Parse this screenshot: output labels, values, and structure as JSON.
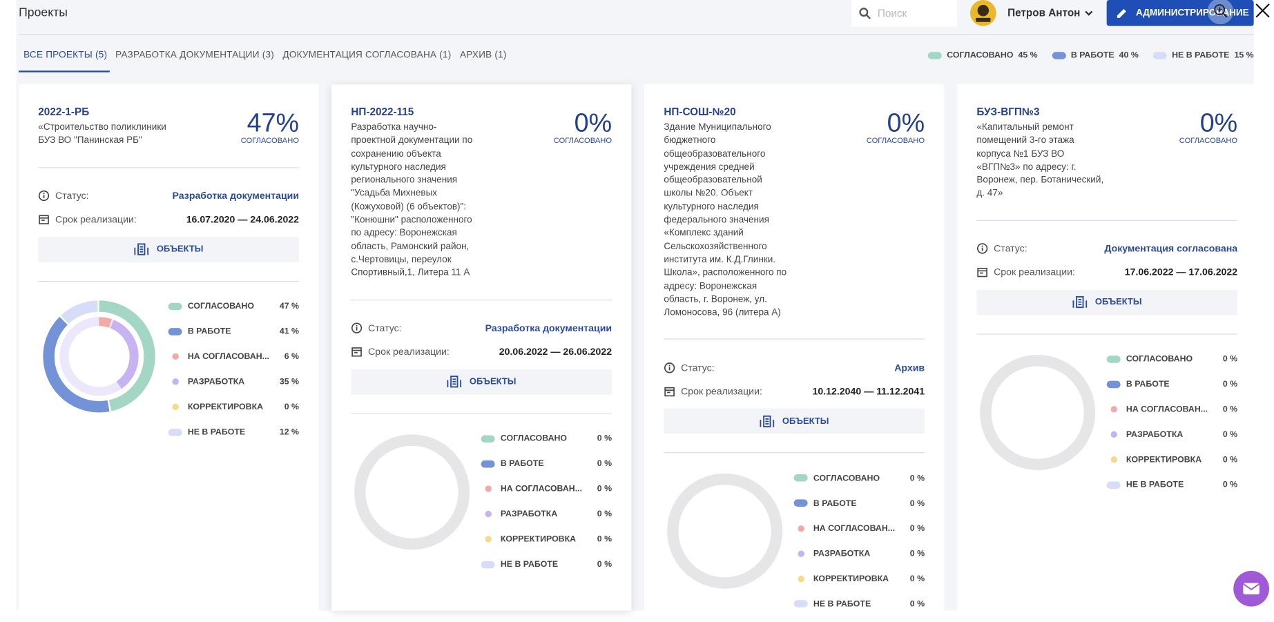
{
  "header": {
    "title": "Проекты",
    "search_placeholder": "Поиск",
    "user": "Петров Антон",
    "admin_button": "АДМИНИСТРИРОВАНИЕ"
  },
  "tabs": [
    "ВСЕ ПРОЕКТЫ (5)",
    "РАЗРАБОТКА ДОКУМЕНТАЦИИ (3)",
    "ДОКУМЕНТАЦИЯ СОГЛАСОВАНА (1)",
    "АРХИВ (1)"
  ],
  "summary": [
    {
      "name": "СОГЛАСОВАНО",
      "value": "45 %"
    },
    {
      "name": "В РАБОТЕ",
      "value": "40 %"
    },
    {
      "name": "НЕ В РАБОТЕ",
      "value": "15 %"
    }
  ],
  "status_names": [
    "СОГЛАСОВАНО",
    "В РАБОТЕ",
    "НА СОГЛАСОВАН...",
    "РАЗРАБОТКА",
    "КОРРЕКТИРОВКА",
    "НЕ В РАБОТЕ"
  ],
  "status_colors": [
    "#a3d6c4",
    "#7392d8",
    "#f2a9a9",
    "#c7b3f2",
    "#f6da8c",
    "#d7ddf8"
  ],
  "projects": [
    {
      "code": "2022-1-РБ",
      "description": "«Строительство поликлиники БУЗ ВО \"Панинская РБ\"",
      "percent": "47%",
      "percent_caption": "СОГЛАСОВАНО",
      "status_label": "Статус:",
      "status": "Разработка документации",
      "period_label": "Срок реализации:",
      "period": "16.07.2020 — 24.06.2022",
      "objects_button": "ОБЪЕКТЫ",
      "values": [
        47,
        41,
        6,
        35,
        0,
        12
      ],
      "value_labels": [
        "47 %",
        "41 %",
        "6 %",
        "35 %",
        "0 %",
        "12 %"
      ]
    },
    {
      "code": "НП-2022-115",
      "description": "Разработка научно-проектной документации по сохранению объекта культурного наследия регионального значения \"Усадьба Михневых (Кожуховой) (6 объектов)\": \"Конюшни\" расположенного по адресу: Воронежская область, Рамонский район, с.Чертовицы, переулок Спортивный,1, Литера 11 А",
      "percent": "0%",
      "percent_caption": "СОГЛАСОВАНО",
      "status_label": "Статус:",
      "status": "Разработка документации",
      "period_label": "Срок реализации:",
      "period": "20.06.2022 — 26.06.2022",
      "objects_button": "ОБЪЕКТЫ",
      "values": [
        0,
        0,
        0,
        0,
        0,
        0
      ],
      "value_labels": [
        "0 %",
        "0 %",
        "0 %",
        "0 %",
        "0 %",
        "0 %"
      ]
    },
    {
      "code": "НП-СОШ-№20",
      "description": "Здание Муниципального бюджетного общеобразовательного учреждения средней общеобразовательной школы №20. Объект культурного наследия федерального значения «Комплекс зданий Сельскохозяйственного института им. К.Д.Глинки. Школа», расположенного по адресу: Воронежская область, г. Воронеж, ул. Ломоносова, 96 (литера А)",
      "percent": "0%",
      "percent_caption": "СОГЛАСОВАНО",
      "status_label": "Статус:",
      "status": "Архив",
      "period_label": "Срок реализации:",
      "period": "10.12.2040 — 11.12.2041",
      "objects_button": "ОБЪЕКТЫ",
      "values": [
        0,
        0,
        0,
        0,
        0,
        0
      ],
      "value_labels": [
        "0 %",
        "0 %",
        "0 %",
        "0 %",
        "0 %",
        "0 %"
      ]
    },
    {
      "code": "БУЗ-ВГП№3",
      "description": "«Капитальный ремонт помещений 3-го этажа корпуса №1 БУЗ ВО «ВГП№3» по адресу: г. Воронеж, пер. Ботанический, д. 47»",
      "percent": "0%",
      "percent_caption": "СОГЛАСОВАНО",
      "status_label": "Статус:",
      "status": "Документация согласована",
      "period_label": "Срок реализации:",
      "period": "17.06.2022 — 17.06.2022",
      "objects_button": "ОБЪЕКТЫ",
      "values": [
        0,
        0,
        0,
        0,
        0,
        0
      ],
      "value_labels": [
        "0 %",
        "0 %",
        "0 %",
        "0 %",
        "0 %",
        "0 %"
      ]
    }
  ]
}
